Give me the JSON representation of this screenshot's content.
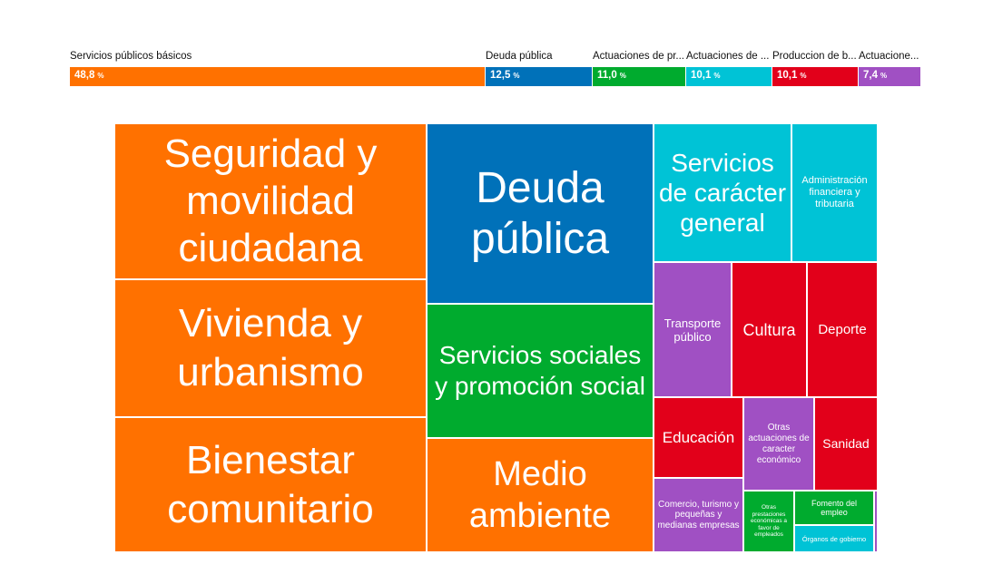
{
  "chart_data": {
    "type": "treemap",
    "groups": [
      {
        "name": "Servicios públicos básicos",
        "value_label": "48,8",
        "unit": "%",
        "value": 48.8,
        "color": "#ff7100"
      },
      {
        "name": "Deuda pública",
        "value_label": "12,5",
        "unit": "%",
        "value": 12.5,
        "color": "#0071b9"
      },
      {
        "name": "Actuaciones de pr...",
        "value_label": "11,0",
        "unit": "%",
        "value": 11.0,
        "color": "#00ab2e"
      },
      {
        "name": "Actuaciones de ...",
        "value_label": "10,1",
        "unit": "%",
        "value": 10.1,
        "color": "#00c3d6"
      },
      {
        "name": "Produccion de b...",
        "value_label": "10,1",
        "unit": "%",
        "value": 10.1,
        "color": "#e2001a"
      },
      {
        "name": "Actuacione...",
        "value_label": "7,4",
        "unit": "%",
        "value": 7.4,
        "color": "#a050c3"
      }
    ],
    "tiles": [
      {
        "label": "Seguridad y movilidad ciudadana",
        "group": 0
      },
      {
        "label": "Vivienda y urbanismo",
        "group": 0
      },
      {
        "label": "Bienestar comunitario",
        "group": 0
      },
      {
        "label": "Medio ambiente",
        "group": 0
      },
      {
        "label": "Deuda pública",
        "group": 1
      },
      {
        "label": "Servicios sociales y promoción social",
        "group": 2
      },
      {
        "label": "Fomento del empleo",
        "group": 2
      },
      {
        "label": "Otras prestaciones económicas a favor de empleados",
        "group": 2
      },
      {
        "label": "Servicios de carácter general",
        "group": 3
      },
      {
        "label": "Administración financiera y tributaria",
        "group": 3
      },
      {
        "label": "Órganos de gobierno",
        "group": 3
      },
      {
        "label": "Cultura",
        "group": 4
      },
      {
        "label": "Deporte",
        "group": 4
      },
      {
        "label": "Educación",
        "group": 4
      },
      {
        "label": "Sanidad",
        "group": 4
      },
      {
        "label": "Transporte público",
        "group": 5
      },
      {
        "label": "Otras actuaciones de caracter económico",
        "group": 5
      },
      {
        "label": "Comercio, turismo y pequeñas y medianas empresas",
        "group": 5
      },
      {
        "label": "",
        "group": 5
      }
    ]
  }
}
